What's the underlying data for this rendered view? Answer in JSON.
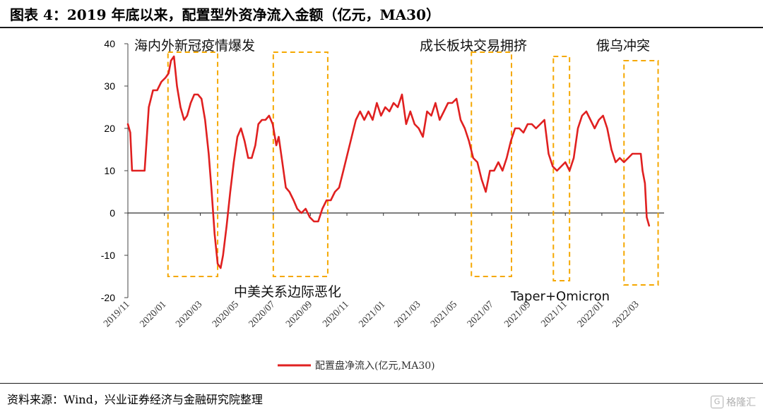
{
  "header": {
    "title": "图表 4：2019 年底以来，配置型外资净流入金额（亿元，MA30）"
  },
  "footer": {
    "source": "资料来源：Wind，兴业证券经济与金融研究院整理",
    "watermark": "格隆汇",
    "watermark_badge": "G"
  },
  "colors": {
    "series": "#e02020",
    "box": "#f5a800"
  },
  "chart_data": {
    "type": "line",
    "title": "",
    "xlabel": "",
    "ylabel": "",
    "ylim": [
      -20,
      40
    ],
    "yticks": [
      40,
      30,
      20,
      10,
      0,
      -10,
      -20
    ],
    "xlim": [
      "2019-11-01",
      "2022-04-15"
    ],
    "xticks": [
      "2019/11",
      "2020/01",
      "2020/03",
      "2020/05",
      "2020/07",
      "2020/09",
      "2020/11",
      "2021/01",
      "2021/03",
      "2021/05",
      "2021/07",
      "2021/09",
      "2021/11",
      "2022/01",
      "2022/03"
    ],
    "xtick_dates": [
      "2019-11-01",
      "2020-01-01",
      "2020-03-01",
      "2020-05-01",
      "2020-07-01",
      "2020-09-01",
      "2020-11-01",
      "2021-01-01",
      "2021-03-01",
      "2021-05-01",
      "2021-07-01",
      "2021-09-01",
      "2021-11-01",
      "2022-01-01",
      "2022-03-01"
    ],
    "legend": {
      "position": "bottom-center",
      "label": "配置盘净流入(亿元,MA30)"
    },
    "series": [
      {
        "name": "配置盘净流入(亿元,MA30)",
        "x": [
          "2019-11-01",
          "2019-11-05",
          "2019-11-08",
          "2019-11-15",
          "2019-11-22",
          "2019-11-29",
          "2019-12-06",
          "2019-12-13",
          "2019-12-20",
          "2019-12-27",
          "2020-01-03",
          "2020-01-08",
          "2020-01-12",
          "2020-01-17",
          "2020-01-22",
          "2020-01-28",
          "2020-02-03",
          "2020-02-08",
          "2020-02-14",
          "2020-02-20",
          "2020-02-26",
          "2020-03-03",
          "2020-03-09",
          "2020-03-15",
          "2020-03-20",
          "2020-03-25",
          "2020-03-30",
          "2020-04-04",
          "2020-04-08",
          "2020-04-14",
          "2020-04-20",
          "2020-04-26",
          "2020-05-02",
          "2020-05-08",
          "2020-05-14",
          "2020-05-20",
          "2020-05-26",
          "2020-06-01",
          "2020-06-06",
          "2020-06-12",
          "2020-06-18",
          "2020-06-24",
          "2020-06-30",
          "2020-07-06",
          "2020-07-10",
          "2020-07-16",
          "2020-07-22",
          "2020-07-28",
          "2020-08-04",
          "2020-08-10",
          "2020-08-17",
          "2020-08-24",
          "2020-08-31",
          "2020-09-07",
          "2020-09-14",
          "2020-09-21",
          "2020-09-28",
          "2020-10-05",
          "2020-10-12",
          "2020-10-19",
          "2020-10-26",
          "2020-11-02",
          "2020-11-09",
          "2020-11-16",
          "2020-11-23",
          "2020-11-30",
          "2020-12-07",
          "2020-12-14",
          "2020-12-21",
          "2020-12-28",
          "2021-01-04",
          "2021-01-11",
          "2021-01-18",
          "2021-01-25",
          "2021-02-01",
          "2021-02-08",
          "2021-02-15",
          "2021-02-22",
          "2021-03-01",
          "2021-03-08",
          "2021-03-15",
          "2021-03-22",
          "2021-03-29",
          "2021-04-05",
          "2021-04-12",
          "2021-04-19",
          "2021-04-26",
          "2021-05-03",
          "2021-05-10",
          "2021-05-17",
          "2021-05-24",
          "2021-05-31",
          "2021-06-07",
          "2021-06-14",
          "2021-06-21",
          "2021-06-28",
          "2021-07-05",
          "2021-07-12",
          "2021-07-19",
          "2021-07-26",
          "2021-08-02",
          "2021-08-09",
          "2021-08-16",
          "2021-08-23",
          "2021-08-30",
          "2021-09-06",
          "2021-09-13",
          "2021-09-20",
          "2021-09-27",
          "2021-10-04",
          "2021-10-11",
          "2021-10-18",
          "2021-10-25",
          "2021-11-01",
          "2021-11-08",
          "2021-11-15",
          "2021-11-22",
          "2021-11-29",
          "2021-12-06",
          "2021-12-13",
          "2021-12-20",
          "2021-12-27",
          "2022-01-03",
          "2022-01-10",
          "2022-01-17",
          "2022-01-24",
          "2022-01-31",
          "2022-02-07",
          "2022-02-14",
          "2022-02-21",
          "2022-02-28",
          "2022-03-07",
          "2022-03-10",
          "2022-03-14",
          "2022-03-17",
          "2022-03-21"
        ],
        "values": [
          21,
          19,
          10,
          10,
          10,
          10,
          25,
          29,
          29,
          31,
          32,
          33,
          36,
          37,
          30,
          25,
          22,
          23,
          26,
          28,
          28,
          27,
          22,
          14,
          5,
          -5,
          -12,
          -13,
          -10,
          -3,
          5,
          12,
          18,
          20,
          17,
          13,
          13,
          16,
          21,
          22,
          22,
          23,
          21,
          16,
          18,
          12,
          6,
          5,
          3,
          1,
          0,
          1,
          -1,
          -2,
          -2,
          1,
          3,
          3,
          5,
          6,
          10,
          14,
          18,
          22,
          24,
          22,
          24,
          22,
          26,
          23,
          25,
          24,
          26,
          25,
          28,
          21,
          24,
          21,
          20,
          18,
          24,
          23,
          26,
          22,
          24,
          26,
          26,
          27,
          22,
          20,
          17,
          13,
          12,
          8,
          5,
          10,
          10,
          12,
          10,
          13,
          17,
          20,
          20,
          19,
          21,
          21,
          20,
          21,
          22,
          14,
          11,
          10,
          11,
          12,
          10,
          13,
          20,
          23,
          24,
          22,
          20,
          22,
          23,
          20,
          15,
          12,
          13,
          12,
          13,
          14,
          14,
          14,
          10,
          7,
          -1,
          -3
        ]
      }
    ],
    "boxes": [
      {
        "label": "海内外新冠疫情爆发",
        "x0": "2020-01-07",
        "x1": "2020-03-30",
        "y0": -15,
        "y1": 38,
        "label_pos": "top"
      },
      {
        "label": "中美关系边际恶化",
        "x0": "2020-07-01",
        "x1": "2020-09-30",
        "y0": -15,
        "y1": 38,
        "label_pos": "bottom"
      },
      {
        "label": "成长板块交易拥挤",
        "x0": "2021-05-28",
        "x1": "2021-08-03",
        "y0": -15,
        "y1": 38,
        "label_pos": "top"
      },
      {
        "label": "",
        "x0": "2021-10-12",
        "x1": "2021-11-08",
        "y0": -16,
        "y1": 37,
        "label_pos": "none"
      },
      {
        "label": "俄乌冲突",
        "x0": "2022-02-07",
        "x1": "2022-04-05",
        "y0": -17,
        "y1": 36,
        "label_pos": "top"
      }
    ],
    "annotation_extra": "Taper+Omicron",
    "grid": false
  }
}
